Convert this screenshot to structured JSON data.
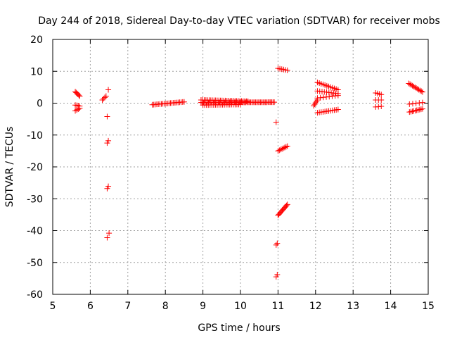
{
  "chart_data": {
    "type": "scatter",
    "title": "Day 244 of 2018, Sidereal Day-to-day VTEC variation (SDTVAR) for receiver mobs",
    "xlabel": "GPS time / hours",
    "ylabel": "SDTVAR / TECUs",
    "xlim": [
      5,
      15
    ],
    "ylim": [
      -60,
      20
    ],
    "xticks": [
      5,
      6,
      7,
      8,
      9,
      10,
      11,
      12,
      13,
      14,
      15
    ],
    "yticks": [
      -60,
      -50,
      -40,
      -30,
      -20,
      -10,
      0,
      10,
      20
    ],
    "grid": true,
    "marker": "+",
    "color": "#ff0000",
    "series": [
      {
        "name": "SDTVAR",
        "segments": [
          {
            "x": [
              5.6,
              5.72
            ],
            "y": [
              3.6,
              2.2
            ],
            "n": 6
          },
          {
            "x": [
              5.6,
              5.72
            ],
            "y": [
              -0.6,
              -0.9
            ],
            "n": 4
          },
          {
            "x": [
              5.6,
              5.72
            ],
            "y": [
              -2.4,
              -1.6
            ],
            "n": 4
          },
          {
            "x": [
              6.32,
              6.42
            ],
            "y": [
              1.0,
              2.2
            ],
            "n": 4
          },
          {
            "x": [
              6.48,
              6.48
            ],
            "y": [
              4.2,
              4.2
            ],
            "n": 1
          },
          {
            "x": [
              6.45,
              6.45
            ],
            "y": [
              -4.2,
              -4.2
            ],
            "n": 1
          },
          {
            "x": [
              6.45,
              6.48
            ],
            "y": [
              -12.5,
              -11.8
            ],
            "n": 2
          },
          {
            "x": [
              6.45,
              6.48
            ],
            "y": [
              -26.8,
              -26.1
            ],
            "n": 2
          },
          {
            "x": [
              6.45,
              6.5
            ],
            "y": [
              -42.2,
              -40.8
            ],
            "n": 2
          },
          {
            "x": [
              7.65,
              8.5
            ],
            "y": [
              -0.5,
              0.4
            ],
            "n": 22
          },
          {
            "x": [
              8.95,
              10.9
            ],
            "y": [
              0.2,
              0.3
            ],
            "n": 60
          },
          {
            "x": [
              8.95,
              10.2
            ],
            "y": [
              1.0,
              0.6
            ],
            "n": 30
          },
          {
            "x": [
              9.0,
              10.0
            ],
            "y": [
              -0.6,
              -0.4
            ],
            "n": 22
          },
          {
            "x": [
              10.95,
              10.95
            ],
            "y": [
              -6.0,
              -6.0
            ],
            "n": 1
          },
          {
            "x": [
              11.0,
              11.25
            ],
            "y": [
              10.9,
              10.3
            ],
            "n": 6
          },
          {
            "x": [
              11.0,
              11.25
            ],
            "y": [
              -15.0,
              -13.5
            ],
            "n": 8
          },
          {
            "x": [
              10.95,
              10.98
            ],
            "y": [
              -44.5,
              -44.0
            ],
            "n": 2
          },
          {
            "x": [
              10.95,
              10.98
            ],
            "y": [
              -54.5,
              -53.8
            ],
            "n": 2
          },
          {
            "x": [
              11.0,
              11.25
            ],
            "y": [
              -35.2,
              -31.8
            ],
            "n": 12
          },
          {
            "x": [
              11.95,
              12.05
            ],
            "y": [
              -0.8,
              1.0
            ],
            "n": 5
          },
          {
            "x": [
              12.05,
              12.6
            ],
            "y": [
              6.5,
              4.2
            ],
            "n": 12
          },
          {
            "x": [
              12.05,
              12.6
            ],
            "y": [
              3.8,
              3.0
            ],
            "n": 10
          },
          {
            "x": [
              12.05,
              12.6
            ],
            "y": [
              1.6,
              2.4
            ],
            "n": 8
          },
          {
            "x": [
              12.05,
              12.6
            ],
            "y": [
              -3.0,
              -2.0
            ],
            "n": 12
          },
          {
            "x": [
              13.6,
              13.75
            ],
            "y": [
              3.2,
              2.7
            ],
            "n": 4
          },
          {
            "x": [
              13.6,
              13.75
            ],
            "y": [
              1.0,
              1.0
            ],
            "n": 3
          },
          {
            "x": [
              13.6,
              13.75
            ],
            "y": [
              -1.2,
              -1.0
            ],
            "n": 3
          },
          {
            "x": [
              14.48,
              14.85
            ],
            "y": [
              6.2,
              3.5
            ],
            "n": 12
          },
          {
            "x": [
              14.5,
              14.85
            ],
            "y": [
              -0.3,
              0.2
            ],
            "n": 5
          },
          {
            "x": [
              14.5,
              14.85
            ],
            "y": [
              -2.8,
              -1.8
            ],
            "n": 10
          }
        ]
      }
    ]
  }
}
